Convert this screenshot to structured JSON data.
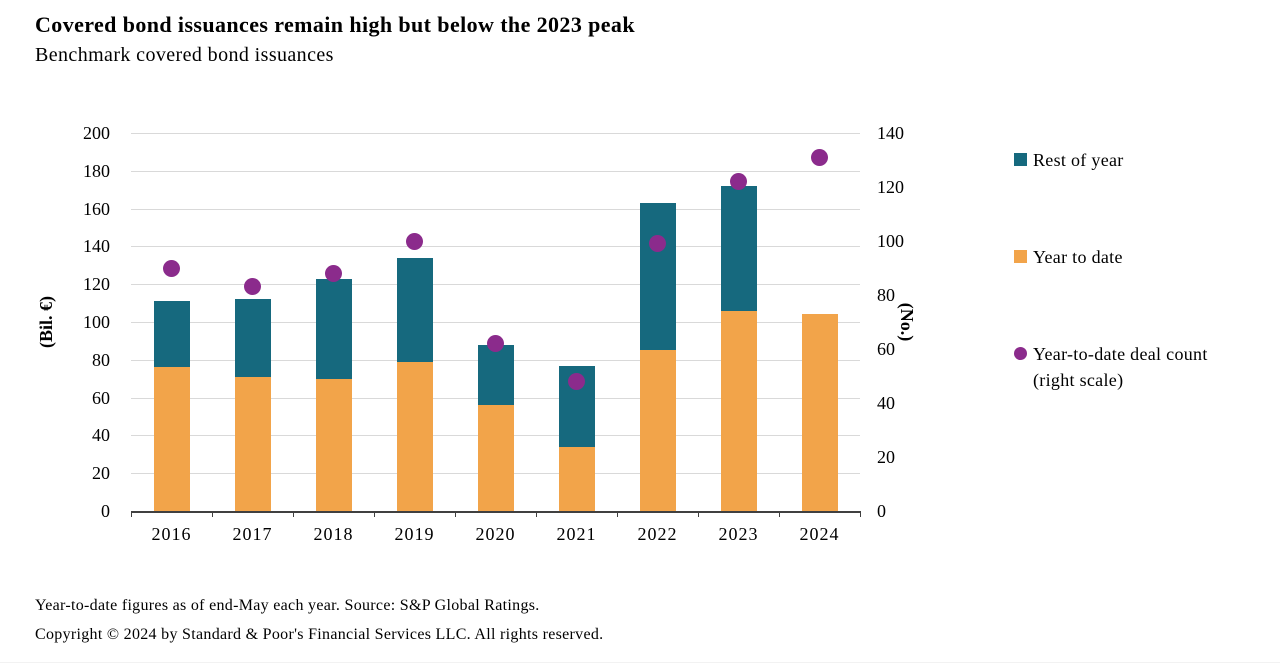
{
  "header": {
    "title": "Covered bond issuances remain high but below the 2023 peak",
    "subtitle": "Benchmark covered bond issuances"
  },
  "chart_data": {
    "type": "bar",
    "stacked": true,
    "title": "Covered bond issuances remain high but below the 2023 peak",
    "subtitle": "Benchmark covered bond issuances",
    "categories": [
      "2016",
      "2017",
      "2018",
      "2019",
      "2020",
      "2021",
      "2022",
      "2023",
      "2024"
    ],
    "series": [
      {
        "name": "Year to date",
        "type": "bar",
        "axis": "left",
        "color": "#F2A44A",
        "values": [
          76,
          71,
          70,
          79,
          56,
          34,
          85,
          106,
          104
        ]
      },
      {
        "name": "Rest of year",
        "type": "bar",
        "axis": "left",
        "color": "#16697E",
        "values": [
          35,
          41,
          53,
          55,
          32,
          43,
          78,
          66,
          0
        ]
      },
      {
        "name": "Year-to-date deal count (right scale)",
        "type": "scatter",
        "axis": "right",
        "color": "#8B2B8C",
        "values": [
          90,
          83,
          88,
          100,
          62,
          48,
          99,
          122,
          131
        ]
      }
    ],
    "left_axis": {
      "label": "(Bil. €)",
      "min": 0,
      "max": 200,
      "step": 20,
      "ticks": [
        0,
        20,
        40,
        60,
        80,
        100,
        120,
        140,
        160,
        180,
        200
      ]
    },
    "right_axis": {
      "label": "(No.)",
      "min": 0,
      "max": 140,
      "step": 20,
      "ticks": [
        0,
        20,
        40,
        60,
        80,
        100,
        120,
        140
      ]
    },
    "grid": true,
    "gridline_color": "#D9D9D9",
    "legend_position": "right"
  },
  "legend": {
    "items": [
      {
        "label": "Rest of year",
        "marker": "square",
        "color": "#16697E",
        "label_lines": [
          "Rest of year"
        ]
      },
      {
        "label": "Year to date",
        "marker": "square",
        "color": "#F2A44A",
        "label_lines": [
          "Year to date"
        ]
      },
      {
        "label": "Year-to-date deal count (right scale)",
        "marker": "circle",
        "color": "#8B2B8C",
        "label_lines": [
          "Year-to-date deal count",
          "(right scale)"
        ]
      }
    ]
  },
  "footnotes": {
    "line1": "Year-to-date figures as of end-May each year. Source: S&P Global Ratings.",
    "line2": "Copyright © 2024 by Standard & Poor's Financial Services LLC. All rights reserved."
  }
}
